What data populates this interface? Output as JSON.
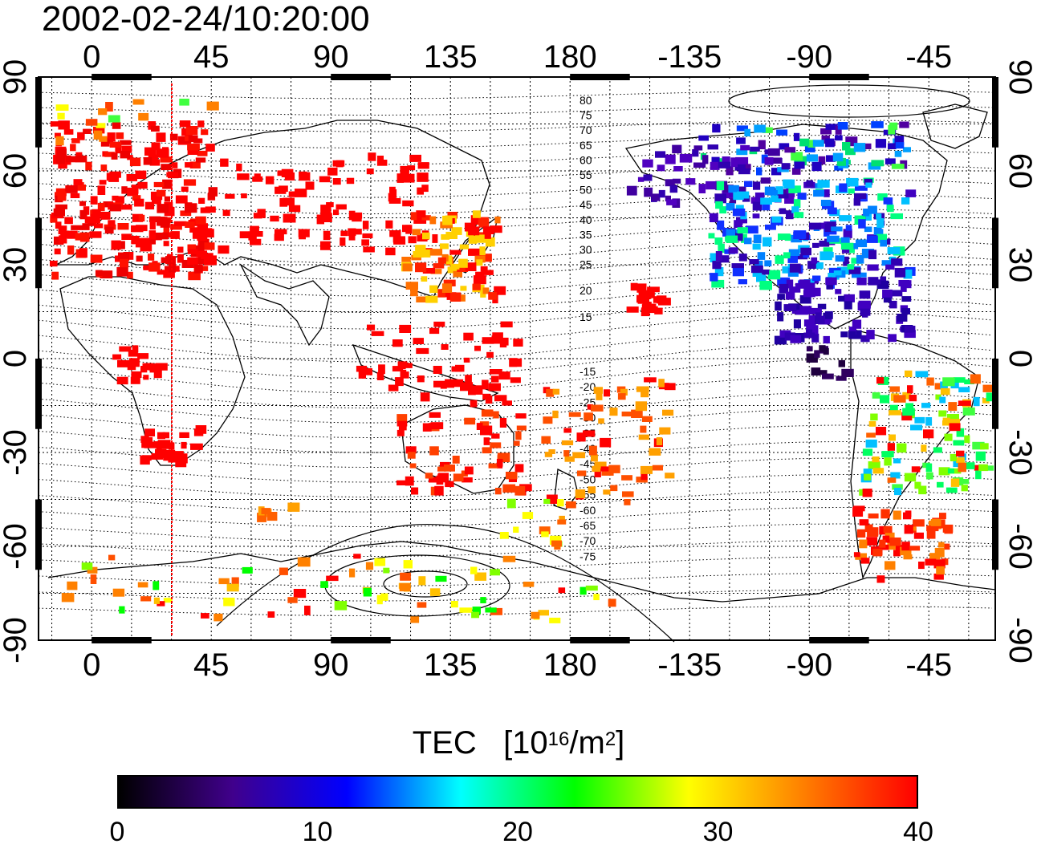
{
  "title": "2002-02-24/10:20:00",
  "map": {
    "top_lon_labels": [
      "0",
      "45",
      "90",
      "135",
      "180",
      "-135",
      "-90",
      "-45"
    ],
    "bottom_lon_labels": [
      "0",
      "45",
      "90",
      "135",
      "180",
      "-135",
      "-90",
      "-45"
    ],
    "left_lat_labels": [
      "90",
      "60",
      "30",
      "0",
      "-30",
      "-60",
      "-90"
    ],
    "right_lat_labels": [
      "90",
      "60",
      "30",
      "0",
      "-30",
      "-60",
      "-90"
    ],
    "magnetic_latitude_labels_north": [
      "80",
      "75",
      "70",
      "65",
      "60",
      "55",
      "50",
      "45",
      "40",
      "35",
      "30",
      "25",
      "20",
      "15"
    ],
    "magnetic_latitude_labels_south": [
      "-15",
      "-20",
      "-25",
      "-30",
      "-35",
      "-40",
      "-45",
      "-50",
      "-55",
      "-60",
      "-65",
      "-70",
      "-75"
    ],
    "terminator_color": "#ff0000"
  },
  "colorbar": {
    "label": "TEC",
    "units_prefix": "[10",
    "units_exp": "16",
    "units_mid": "/m",
    "units_exp2": "2",
    "units_suffix": "]",
    "ticks": [
      "0",
      "10",
      "20",
      "30",
      "40"
    ],
    "stops": [
      "#000000",
      "#40008c",
      "#0000ff",
      "#00ffff",
      "#00ff00",
      "#ffff00",
      "#ff8000",
      "#ff0000"
    ]
  }
}
